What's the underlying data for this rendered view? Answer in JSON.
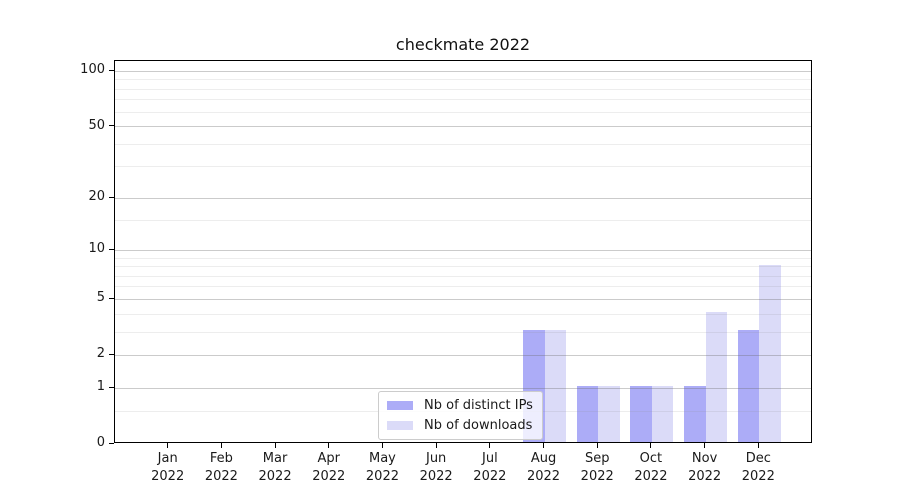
{
  "figure": {
    "title": "checkmate 2022"
  },
  "chart_data": {
    "type": "bar",
    "title": "checkmate 2022",
    "categories": [
      "Jan 2022",
      "Feb 2022",
      "Mar 2022",
      "Apr 2022",
      "May 2022",
      "Jun 2022",
      "Jul 2022",
      "Aug 2022",
      "Sep 2022",
      "Oct 2022",
      "Nov 2022",
      "Dec 2022"
    ],
    "series": [
      {
        "name": "Nb of distinct IPs",
        "color": "#acacf7",
        "values": [
          0,
          0,
          0,
          0,
          0,
          0,
          0,
          3,
          1,
          1,
          1,
          3
        ]
      },
      {
        "name": "Nb of downloads",
        "color": "#dbdbf8",
        "values": [
          0,
          0,
          0,
          0,
          0,
          0,
          0,
          3,
          1,
          1,
          4,
          8
        ]
      }
    ],
    "xlabel": "",
    "ylabel": "",
    "yscale": "log1p",
    "ylim": [
      0,
      114
    ],
    "y_ticks": [
      0,
      1,
      2,
      5,
      10,
      20,
      50,
      100
    ],
    "y_minor_ticks": [
      0.5,
      3,
      4,
      6,
      7,
      8,
      9,
      15,
      30,
      40,
      60,
      70,
      80,
      90
    ],
    "grid": true,
    "bar_width_fraction": 0.4,
    "legend": {
      "position": "lower center"
    }
  },
  "colors": {
    "spine": "#000000",
    "text": "#1a1a1a",
    "legend_border": "#cccccc"
  }
}
